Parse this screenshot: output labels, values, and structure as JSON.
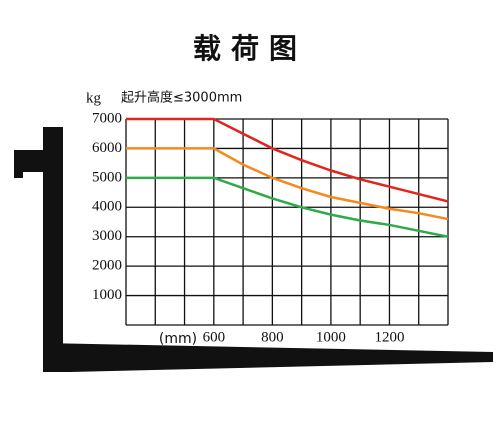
{
  "chart_data": {
    "type": "line",
    "title": "载荷图",
    "y_unit": "kg",
    "subtitle": "起升高度≤3000mm",
    "x_unit": "(mm)",
    "x": [
      300,
      600,
      700,
      800,
      900,
      1000,
      1100,
      1200,
      1300,
      1400
    ],
    "series": [
      {
        "color": "#e0261f",
        "values": [
          7000,
          7000,
          6500,
          6000,
          5600,
          5250,
          4950,
          4700,
          4450,
          4200
        ]
      },
      {
        "color": "#f28a1e",
        "values": [
          6000,
          6000,
          5450,
          5000,
          4650,
          4350,
          4150,
          3950,
          3800,
          3600
        ]
      },
      {
        "color": "#2eaa4a",
        "values": [
          5000,
          5000,
          4650,
          4300,
          4000,
          3750,
          3550,
          3400,
          3200,
          3000
        ]
      }
    ],
    "xlim": [
      300,
      1400
    ],
    "xticks": [
      600,
      800,
      1000,
      1200
    ],
    "xgrid": [
      300,
      400,
      500,
      600,
      700,
      800,
      900,
      1000,
      1100,
      1200,
      1300,
      1400
    ],
    "ylim": [
      0,
      7000
    ],
    "yticks": [
      1000,
      2000,
      3000,
      4000,
      5000,
      6000,
      7000
    ],
    "ygrid": [
      0,
      1000,
      2000,
      3000,
      4000,
      5000,
      6000,
      7000
    ],
    "grid": true
  }
}
